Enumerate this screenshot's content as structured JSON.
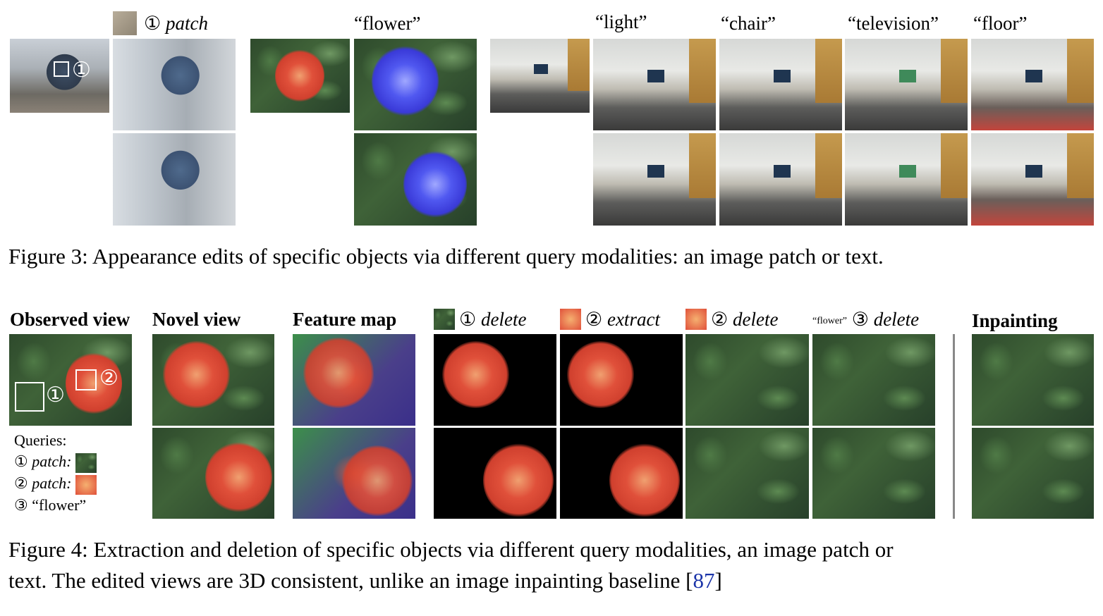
{
  "figure3": {
    "labels": {
      "patch_num": "①",
      "patch": "patch",
      "flower": "“flower”",
      "light": "“light”",
      "chair": "“chair”",
      "television": "“television”",
      "floor": "“floor”"
    },
    "overlay_num": "①",
    "caption": "Figure 3: Appearance edits of specific objects via different query modalities: an image patch or text."
  },
  "figure4": {
    "headers": {
      "observed": "Observed view",
      "novel": "Novel view",
      "feature": "Feature map",
      "inpainting": "Inpainting"
    },
    "ops": {
      "op1_num": "①",
      "op1": "delete",
      "op2_num": "②",
      "op2": "extract",
      "op3_num": "②",
      "op3": "delete",
      "op4_small": "“flower”",
      "op4_num": "③",
      "op4": "delete"
    },
    "overlay_nums": [
      "①",
      "②"
    ],
    "queries": {
      "title": "Queries:",
      "q1_num": "①",
      "q1": "patch:",
      "q2_num": "②",
      "q2": "patch:",
      "q3_num": "③",
      "q3": "“flower”"
    },
    "caption_line1": "Figure 4: Extraction and deletion of specific objects via different query modalities, an image patch or",
    "caption_line2": "text. The edited views are 3D consistent, unlike an image inpainting baseline [",
    "caption_ref": "87",
    "caption_end": "]"
  },
  "colors": {
    "reference_link": "#1a33a8",
    "separator": "#888888"
  }
}
